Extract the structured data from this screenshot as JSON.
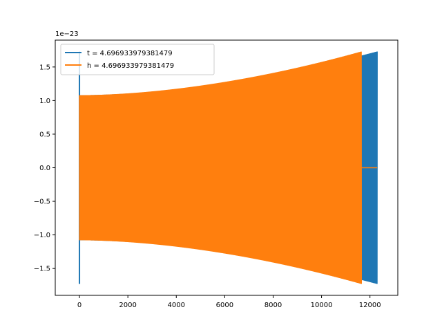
{
  "chart_data": {
    "type": "line",
    "title": "",
    "xlabel": "",
    "ylabel": "",
    "y_offset_label": "1e−23",
    "xlim": [
      -1000,
      13150
    ],
    "ylim": [
      -1.9,
      1.9
    ],
    "xticks": [
      0,
      2000,
      4000,
      6000,
      8000,
      10000,
      12000
    ],
    "xtick_labels": [
      "0",
      "2000",
      "4000",
      "6000",
      "8000",
      "10000",
      "12000"
    ],
    "yticks": [
      -1.5,
      -1.0,
      -0.5,
      0.0,
      0.5,
      1.0,
      1.5
    ],
    "ytick_labels": [
      "−1.5",
      "−1.0",
      "−0.5",
      "0.0",
      "0.5",
      "1.0",
      "1.5"
    ],
    "grid": false,
    "legend_position": "top-left",
    "series": [
      {
        "name": "t = 4.696933979381479",
        "color": "#1f77b4",
        "style": "oscillating-envelope",
        "x_start": 0,
        "x_end": 12300,
        "spike_at_start": 1.73,
        "amplitude_start": 1.08,
        "amplitude_end": 1.73,
        "ringdown_x": 12300
      },
      {
        "name": "h = 4.696933979381479",
        "color": "#ff7f0e",
        "style": "oscillating-envelope",
        "x_start": 0,
        "x_end": 11650,
        "amplitude_start": 1.08,
        "amplitude_end": 1.73,
        "flat_after_x": 11650,
        "flat_to_x": 12300,
        "flat_value": 0.0
      }
    ]
  }
}
